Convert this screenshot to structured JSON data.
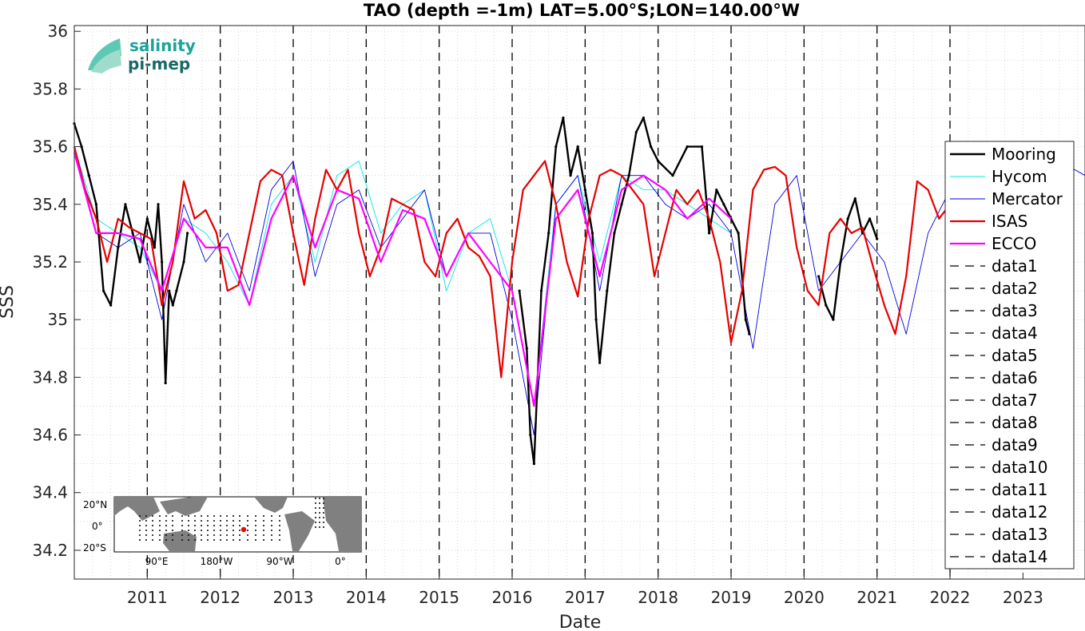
{
  "logo": {
    "line1": "salinity",
    "line2": "pi-mep"
  },
  "chart_data": {
    "type": "line",
    "title": "TAO (depth =-1m) LAT=5.00°S;LON=140.00°W",
    "xlabel": "Date",
    "ylabel": "SSS",
    "xlim": [
      2010.0,
      2023.85
    ],
    "ylim": [
      34.1,
      36.02
    ],
    "x_tick_labels": [
      "2011",
      "2012",
      "2013",
      "2014",
      "2015",
      "2016",
      "2017",
      "2018",
      "2019",
      "2020",
      "2021",
      "2022",
      "2023"
    ],
    "x_ticks": [
      2011,
      2012,
      2013,
      2014,
      2015,
      2016,
      2017,
      2018,
      2019,
      2020,
      2021,
      2022,
      2023
    ],
    "y_ticks": [
      34.2,
      34.4,
      34.6,
      34.8,
      35,
      35.2,
      35.4,
      35.6,
      35.8,
      36
    ],
    "y_tick_labels": [
      "34.2",
      "34.4",
      "34.6",
      "34.8",
      "35",
      "35.2",
      "35.4",
      "35.6",
      "35.8",
      "36"
    ],
    "grid": true,
    "legend_position": "right",
    "vertical_dashed_lines": [
      2011,
      2012,
      2013,
      2014,
      2015,
      2016,
      2017,
      2018,
      2019,
      2020,
      2021,
      2022
    ],
    "series": [
      {
        "name": "Mooring",
        "color": "#000000",
        "style": "solid-dots",
        "segments": [
          [
            [
              2010.0,
              35.68
            ],
            [
              2010.1,
              35.6
            ],
            [
              2010.2,
              35.5
            ],
            [
              2010.3,
              35.4
            ],
            [
              2010.4,
              35.1
            ],
            [
              2010.5,
              35.05
            ],
            [
              2010.6,
              35.25
            ],
            [
              2010.7,
              35.4
            ],
            [
              2010.8,
              35.3
            ],
            [
              2010.9,
              35.2
            ],
            [
              2011.0,
              35.35
            ],
            [
              2011.1,
              35.25
            ],
            [
              2011.15,
              35.4
            ],
            [
              2011.2,
              35.2
            ],
            [
              2011.25,
              34.78
            ],
            [
              2011.3,
              35.1
            ],
            [
              2011.35,
              35.05
            ],
            [
              2011.4,
              35.1
            ],
            [
              2011.5,
              35.2
            ],
            [
              2011.55,
              35.3
            ]
          ],
          [
            [
              2016.1,
              35.1
            ],
            [
              2016.2,
              34.9
            ],
            [
              2016.25,
              34.6
            ],
            [
              2016.3,
              34.5
            ],
            [
              2016.35,
              34.8
            ],
            [
              2016.4,
              35.1
            ],
            [
              2016.5,
              35.3
            ],
            [
              2016.6,
              35.6
            ],
            [
              2016.7,
              35.7
            ],
            [
              2016.8,
              35.5
            ],
            [
              2016.9,
              35.6
            ],
            [
              2017.0,
              35.45
            ],
            [
              2017.1,
              35.3
            ],
            [
              2017.15,
              35.0
            ],
            [
              2017.2,
              34.85
            ],
            [
              2017.3,
              35.1
            ],
            [
              2017.4,
              35.3
            ],
            [
              2017.5,
              35.4
            ],
            [
              2017.6,
              35.5
            ],
            [
              2017.7,
              35.65
            ],
            [
              2017.8,
              35.7
            ],
            [
              2017.9,
              35.6
            ],
            [
              2018.0,
              35.55
            ],
            [
              2018.2,
              35.5
            ],
            [
              2018.4,
              35.6
            ],
            [
              2018.6,
              35.6
            ],
            [
              2018.7,
              35.3
            ],
            [
              2018.8,
              35.45
            ],
            [
              2018.9,
              35.4
            ],
            [
              2019.0,
              35.35
            ],
            [
              2019.1,
              35.3
            ],
            [
              2019.2,
              35.0
            ],
            [
              2019.25,
              34.95
            ]
          ],
          [
            [
              2020.2,
              35.15
            ],
            [
              2020.3,
              35.05
            ],
            [
              2020.4,
              35.0
            ],
            [
              2020.5,
              35.2
            ],
            [
              2020.6,
              35.35
            ],
            [
              2020.7,
              35.42
            ],
            [
              2020.8,
              35.3
            ],
            [
              2020.9,
              35.35
            ],
            [
              2021.0,
              35.28
            ]
          ]
        ]
      },
      {
        "name": "Hycom",
        "color": "#00e5e5",
        "style": "thin",
        "x": [
          2010.0,
          2010.3,
          2010.6,
          2010.9,
          2011.2,
          2011.5,
          2011.8,
          2012.1,
          2012.4,
          2012.7,
          2013.0,
          2013.3,
          2013.6,
          2013.9,
          2014.2,
          2014.5,
          2014.8,
          2015.1,
          2015.4,
          2015.7,
          2016.0,
          2016.3,
          2016.6,
          2016.9,
          2017.2,
          2017.5,
          2017.8,
          2018.1,
          2018.4,
          2018.7,
          2019.0
        ],
        "values": [
          35.6,
          35.35,
          35.3,
          35.25,
          35.1,
          35.35,
          35.3,
          35.2,
          35.05,
          35.4,
          35.5,
          35.2,
          35.5,
          35.55,
          35.3,
          35.4,
          35.45,
          35.1,
          35.3,
          35.35,
          35.1,
          34.7,
          35.4,
          35.5,
          35.2,
          35.5,
          35.45,
          35.45,
          35.4,
          35.35,
          35.3
        ]
      },
      {
        "name": "Mercator",
        "color": "#0000dd",
        "style": "thin",
        "x": [
          2010.0,
          2010.3,
          2010.6,
          2010.9,
          2011.2,
          2011.5,
          2011.8,
          2012.1,
          2012.4,
          2012.7,
          2013.0,
          2013.3,
          2013.6,
          2013.9,
          2014.2,
          2014.5,
          2014.8,
          2015.1,
          2015.4,
          2015.7,
          2016.0,
          2016.3,
          2016.6,
          2016.9,
          2017.2,
          2017.5,
          2017.8,
          2018.1,
          2018.4,
          2018.7,
          2019.0,
          2019.3,
          2019.6,
          2019.9,
          2020.2,
          2020.5,
          2020.8,
          2021.1,
          2021.4,
          2021.7,
          2022.0,
          2022.3,
          2022.6,
          2022.9,
          2023.2,
          2023.5,
          2023.85
        ],
        "values": [
          35.6,
          35.3,
          35.25,
          35.3,
          35.0,
          35.4,
          35.2,
          35.3,
          35.1,
          35.45,
          35.55,
          35.15,
          35.4,
          35.45,
          35.25,
          35.35,
          35.45,
          35.15,
          35.3,
          35.3,
          35.0,
          34.6,
          35.4,
          35.5,
          35.1,
          35.5,
          35.5,
          35.4,
          35.35,
          35.4,
          35.3,
          34.9,
          35.4,
          35.5,
          35.1,
          35.2,
          35.3,
          35.2,
          34.95,
          35.3,
          35.45,
          35.1,
          35.5,
          35.4,
          35.5,
          35.55,
          35.5
        ]
      },
      {
        "name": "ISAS",
        "color": "#e60000",
        "style": "thick",
        "x": [
          2010.0,
          2010.15,
          2010.3,
          2010.45,
          2010.6,
          2010.75,
          2010.9,
          2011.05,
          2011.2,
          2011.35,
          2011.5,
          2011.65,
          2011.8,
          2011.95,
          2012.1,
          2012.25,
          2012.4,
          2012.55,
          2012.7,
          2012.85,
          2013.0,
          2013.15,
          2013.3,
          2013.45,
          2013.6,
          2013.75,
          2013.9,
          2014.05,
          2014.2,
          2014.35,
          2014.5,
          2014.65,
          2014.8,
          2014.95,
          2015.1,
          2015.25,
          2015.4,
          2015.55,
          2015.7,
          2015.85,
          2016.0,
          2016.15,
          2016.3,
          2016.45,
          2016.6,
          2016.75,
          2016.9,
          2017.05,
          2017.2,
          2017.35,
          2017.5,
          2017.65,
          2017.8,
          2017.95,
          2018.1,
          2018.25,
          2018.4,
          2018.55,
          2018.7,
          2018.85,
          2019.0,
          2019.15,
          2019.3,
          2019.45,
          2019.6,
          2019.75,
          2019.9,
          2020.05,
          2020.2,
          2020.35,
          2020.5,
          2020.65,
          2020.8,
          2020.95,
          2021.1,
          2021.25,
          2021.4,
          2021.55,
          2021.7,
          2021.85,
          2022.0
        ],
        "values": [
          35.6,
          35.45,
          35.35,
          35.2,
          35.35,
          35.32,
          35.3,
          35.28,
          35.05,
          35.2,
          35.48,
          35.35,
          35.38,
          35.3,
          35.1,
          35.12,
          35.3,
          35.48,
          35.52,
          35.5,
          35.3,
          35.12,
          35.35,
          35.52,
          35.45,
          35.52,
          35.3,
          35.15,
          35.25,
          35.42,
          35.4,
          35.38,
          35.2,
          35.15,
          35.3,
          35.35,
          35.25,
          35.22,
          35.15,
          34.8,
          35.2,
          35.45,
          35.5,
          35.55,
          35.4,
          35.2,
          35.08,
          35.35,
          35.5,
          35.52,
          35.5,
          35.45,
          35.4,
          35.15,
          35.3,
          35.45,
          35.4,
          35.45,
          35.35,
          35.2,
          34.92,
          35.1,
          35.45,
          35.52,
          35.53,
          35.5,
          35.25,
          35.1,
          35.05,
          35.3,
          35.35,
          35.3,
          35.32,
          35.18,
          35.05,
          34.95,
          35.15,
          35.48,
          35.45,
          35.35,
          35.4
        ]
      },
      {
        "name": "ECCO",
        "color": "#ff00ff",
        "style": "thick",
        "x": [
          2010.0,
          2010.3,
          2010.6,
          2010.9,
          2011.2,
          2011.5,
          2011.8,
          2012.1,
          2012.4,
          2012.7,
          2013.0,
          2013.3,
          2013.6,
          2013.9,
          2014.2,
          2014.5,
          2014.8,
          2015.1,
          2015.4,
          2015.7,
          2016.0,
          2016.3,
          2016.6,
          2016.9,
          2017.2,
          2017.5,
          2017.8,
          2018.1,
          2018.4,
          2018.7,
          2019.0
        ],
        "values": [
          35.58,
          35.3,
          35.3,
          35.28,
          35.1,
          35.35,
          35.25,
          35.25,
          35.05,
          35.35,
          35.5,
          35.25,
          35.45,
          35.42,
          35.2,
          35.38,
          35.35,
          35.15,
          35.3,
          35.2,
          35.1,
          34.7,
          35.35,
          35.45,
          35.15,
          35.45,
          35.5,
          35.45,
          35.35,
          35.42,
          35.35
        ]
      }
    ],
    "legend_entries": [
      "Mooring",
      "Hycom",
      "Mercator",
      "ISAS",
      "ECCO",
      "data1",
      "data2",
      "data3",
      "data4",
      "data5",
      "data6",
      "data7",
      "data8",
      "data9",
      "data10",
      "data11",
      "data12",
      "data13",
      "data14"
    ]
  },
  "inset_map": {
    "lat_labels": [
      "20°N",
      "0°",
      "20°S"
    ],
    "lon_labels": [
      "90°E",
      "180°W",
      "90°W",
      "0°"
    ]
  }
}
